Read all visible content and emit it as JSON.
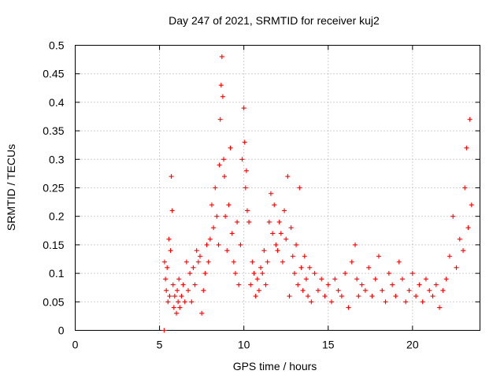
{
  "chart_data": {
    "type": "scatter",
    "title": "Day 247 of 2021, SRMTID for receiver kuj2",
    "xlabel": "GPS time / hours",
    "ylabel": "SRMTID / TECUs",
    "xlim": [
      0,
      24
    ],
    "ylim": [
      0,
      0.5
    ],
    "x_ticks": [
      0,
      5,
      10,
      15,
      20
    ],
    "y_ticks": [
      0,
      0.05,
      0.1,
      0.15,
      0.2,
      0.25,
      0.3,
      0.35,
      0.4,
      0.45,
      0.5
    ],
    "x_tick_labels": [
      "0",
      "5",
      "10",
      "15",
      "20"
    ],
    "y_tick_labels": [
      "0",
      "0.05",
      "0.1",
      "0.15",
      "0.2",
      "0.25",
      "0.3",
      "0.35",
      "0.4",
      "0.45",
      "0.5"
    ],
    "grid": true,
    "marker": "plus",
    "color": "#ff0000",
    "series": [
      {
        "x": [
          5.27,
          5.3,
          5.35,
          5.4,
          5.45,
          5.5,
          5.55,
          5.6,
          5.65,
          5.7,
          5.75,
          5.8,
          5.85,
          5.9,
          6.0,
          6.05,
          6.1,
          6.15,
          6.2,
          6.3,
          6.4,
          6.5,
          6.6,
          6.7,
          6.8,
          6.9,
          7.0,
          7.1,
          7.2,
          7.3,
          7.4,
          7.5,
          7.6,
          7.7,
          7.8,
          7.9,
          8.0,
          8.1,
          8.2,
          8.3,
          8.4,
          8.5,
          8.55,
          8.6,
          8.65,
          8.7,
          8.75,
          8.8,
          8.85,
          8.9,
          9.0,
          9.1,
          9.2,
          9.3,
          9.4,
          9.5,
          9.6,
          9.7,
          9.8,
          9.9,
          10.0,
          10.05,
          10.1,
          10.15,
          10.2,
          10.3,
          10.4,
          10.5,
          10.6,
          10.7,
          10.8,
          10.9,
          11.0,
          11.1,
          11.2,
          11.3,
          11.4,
          11.5,
          11.6,
          11.7,
          11.8,
          11.9,
          12.0,
          12.1,
          12.2,
          12.3,
          12.4,
          12.5,
          12.6,
          12.7,
          12.8,
          12.9,
          13.0,
          13.1,
          13.2,
          13.3,
          13.4,
          13.5,
          13.6,
          13.7,
          13.8,
          13.9,
          14.0,
          14.2,
          14.4,
          14.6,
          14.8,
          15.0,
          15.2,
          15.4,
          15.6,
          15.8,
          16.0,
          16.2,
          16.4,
          16.6,
          16.7,
          16.8,
          17.0,
          17.2,
          17.4,
          17.6,
          17.8,
          18.0,
          18.2,
          18.4,
          18.6,
          18.8,
          19.0,
          19.2,
          19.4,
          19.6,
          19.8,
          20.0,
          20.2,
          20.4,
          20.6,
          20.8,
          21.0,
          21.2,
          21.4,
          21.6,
          21.8,
          22.0,
          22.2,
          22.4,
          22.6,
          22.8,
          23.0,
          23.1,
          23.2,
          23.3,
          23.4,
          23.5
        ],
        "y": [
          0.0,
          0.12,
          0.09,
          0.07,
          0.11,
          0.05,
          0.16,
          0.06,
          0.14,
          0.27,
          0.21,
          0.08,
          0.04,
          0.06,
          0.03,
          0.07,
          0.05,
          0.09,
          0.04,
          0.06,
          0.08,
          0.05,
          0.12,
          0.07,
          0.1,
          0.05,
          0.11,
          0.08,
          0.14,
          0.12,
          0.13,
          0.03,
          0.07,
          0.1,
          0.15,
          0.12,
          0.16,
          0.22,
          0.18,
          0.25,
          0.2,
          0.15,
          0.29,
          0.37,
          0.43,
          0.48,
          0.41,
          0.3,
          0.27,
          0.2,
          0.14,
          0.22,
          0.32,
          0.17,
          0.12,
          0.1,
          0.19,
          0.08,
          0.15,
          0.3,
          0.39,
          0.33,
          0.25,
          0.28,
          0.21,
          0.19,
          0.08,
          0.12,
          0.1,
          0.06,
          0.09,
          0.07,
          0.11,
          0.1,
          0.14,
          0.08,
          0.12,
          0.19,
          0.24,
          0.17,
          0.22,
          0.15,
          0.14,
          0.19,
          0.17,
          0.12,
          0.21,
          0.16,
          0.27,
          0.06,
          0.18,
          0.13,
          0.1,
          0.15,
          0.08,
          0.25,
          0.11,
          0.07,
          0.13,
          0.09,
          0.06,
          0.11,
          0.05,
          0.1,
          0.07,
          0.09,
          0.06,
          0.08,
          0.05,
          0.09,
          0.07,
          0.06,
          0.1,
          0.04,
          0.12,
          0.15,
          0.09,
          0.06,
          0.08,
          0.07,
          0.11,
          0.06,
          0.09,
          0.13,
          0.07,
          0.05,
          0.1,
          0.08,
          0.06,
          0.12,
          0.09,
          0.05,
          0.07,
          0.1,
          0.06,
          0.08,
          0.05,
          0.09,
          0.07,
          0.06,
          0.08,
          0.04,
          0.07,
          0.09,
          0.13,
          0.2,
          0.11,
          0.16,
          0.14,
          0.25,
          0.32,
          0.18,
          0.37,
          0.22
        ]
      }
    ]
  }
}
